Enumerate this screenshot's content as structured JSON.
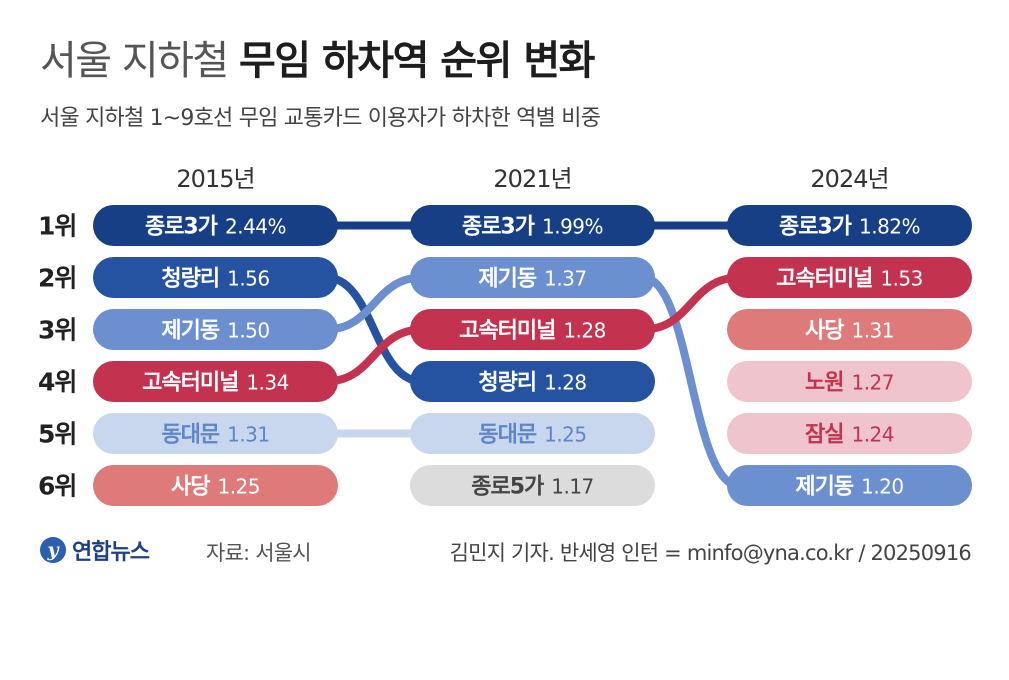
{
  "title_light": "서울 지하철",
  "title_bold": "무임 하차역 순위 변화",
  "subtitle": "서울 지하철 1~9호선 무임 교통카드 이용자가 하차한 역별 비중",
  "logo_text": "연합뉴스",
  "source": "자료: 서울시",
  "credit": "김민지 기자. 반세영 인턴 = minfo@yna.co.kr / 20250916",
  "colors": {
    "dark_blue": "#173f86",
    "blue": "#2553a2",
    "mid_blue": "#6b8fcf",
    "pale_blue": "#c9d7ee",
    "red": "#c3324f",
    "salmon": "#df7a7a",
    "pink": "#efc4cc",
    "gray": "#dcdcdc"
  },
  "chart_data": {
    "type": "bump",
    "unit": "%",
    "columns": [
      "2015년",
      "2021년",
      "2024년"
    ],
    "rank_labels": [
      "1위",
      "2위",
      "3위",
      "4위",
      "5위",
      "6위"
    ],
    "rows": [
      [
        {
          "name": "종로3가",
          "value": "2.44%",
          "color": "dark_blue"
        },
        {
          "name": "청량리",
          "value": "1.56",
          "color": "blue"
        },
        {
          "name": "제기동",
          "value": "1.50",
          "color": "mid_blue"
        },
        {
          "name": "고속터미널",
          "value": "1.34",
          "color": "red"
        },
        {
          "name": "동대문",
          "value": "1.31",
          "color": "pale_blue"
        },
        {
          "name": "사당",
          "value": "1.25",
          "color": "salmon"
        }
      ],
      [
        {
          "name": "종로3가",
          "value": "1.99%",
          "color": "dark_blue"
        },
        {
          "name": "제기동",
          "value": "1.37",
          "color": "mid_blue"
        },
        {
          "name": "고속터미널",
          "value": "1.28",
          "color": "red"
        },
        {
          "name": "청량리",
          "value": "1.28",
          "color": "blue"
        },
        {
          "name": "동대문",
          "value": "1.25",
          "color": "pale_blue"
        },
        {
          "name": "종로5가",
          "value": "1.17",
          "color": "gray"
        }
      ],
      [
        {
          "name": "종로3가",
          "value": "1.82%",
          "color": "dark_blue"
        },
        {
          "name": "고속터미널",
          "value": "1.53",
          "color": "red"
        },
        {
          "name": "사당",
          "value": "1.31",
          "color": "salmon"
        },
        {
          "name": "노원",
          "value": "1.27",
          "color": "pink"
        },
        {
          "name": "잠실",
          "value": "1.24",
          "color": "pink"
        },
        {
          "name": "제기동",
          "value": "1.20",
          "color": "mid_blue"
        }
      ]
    ]
  }
}
